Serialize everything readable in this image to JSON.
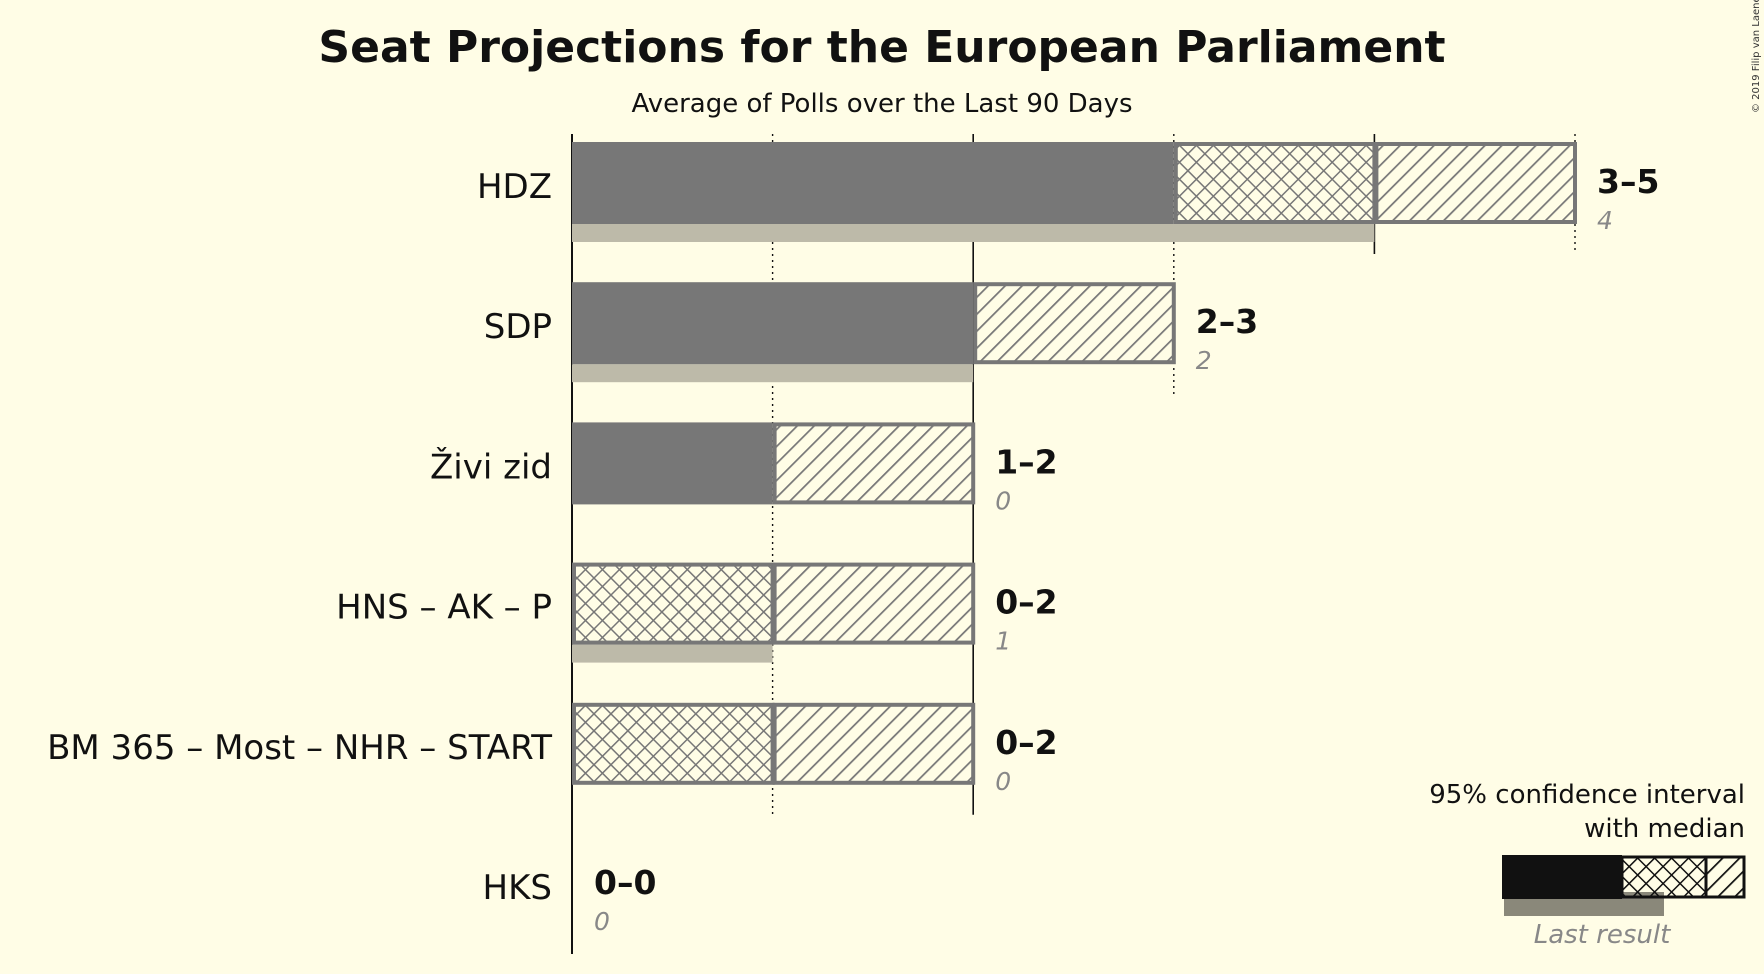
{
  "chart_data": {
    "type": "bar",
    "title": "Seat Projections for the European Parliament",
    "subtitle": "Average of Polls over the Last 90 Days",
    "xlim": [
      0,
      5
    ],
    "categories": [
      "HDZ",
      "SDP",
      "Živi zid",
      "HNS – AK – P",
      "BM 365 – Most – NHR – START",
      "HKS"
    ],
    "series": [
      {
        "name": "95% confidence interval low",
        "values": [
          3,
          2,
          1,
          0,
          0,
          0
        ]
      },
      {
        "name": "median",
        "values": [
          4,
          2,
          1,
          1,
          1,
          0
        ]
      },
      {
        "name": "95% confidence interval high",
        "values": [
          5,
          3,
          2,
          2,
          2,
          0
        ]
      },
      {
        "name": "Last result",
        "values": [
          4,
          2,
          0,
          1,
          0,
          0
        ]
      }
    ],
    "range_labels": [
      "3–5",
      "2–3",
      "1–2",
      "0–2",
      "0–2",
      "0–0"
    ],
    "last_result_labels": [
      "4",
      "2",
      "0",
      "1",
      "0",
      "0"
    ],
    "legend": {
      "title_line1": "95% confidence interval",
      "title_line2": "with median",
      "last_result": "Last result",
      "position": "bottom-right"
    },
    "colors": {
      "background": "#fffde6",
      "bar": "#777777",
      "last_result": "#bdbaa9",
      "legend_bar": "#111111",
      "legend_last": "#8a887a"
    }
  },
  "copyright": "© 2019 Filip van Laenen"
}
